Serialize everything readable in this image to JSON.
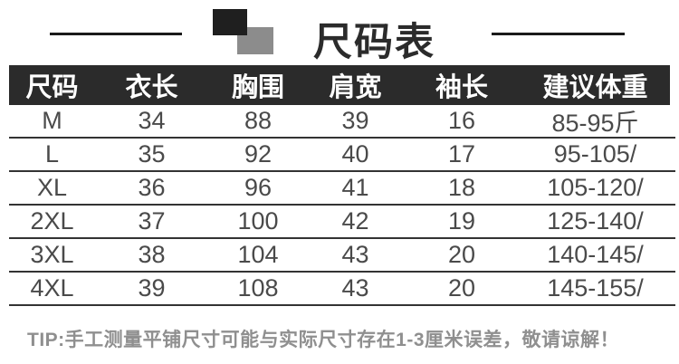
{
  "header": {
    "title": "尺码表"
  },
  "table": {
    "columns": [
      "尺码",
      "衣长",
      "胸围",
      "肩宽",
      "袖长",
      "建议体重"
    ],
    "rows": [
      [
        "M",
        "34",
        "88",
        "39",
        "16",
        "85-95斤"
      ],
      [
        "L",
        "35",
        "92",
        "40",
        "17",
        "95-105/"
      ],
      [
        "XL",
        "36",
        "96",
        "41",
        "18",
        "105-120/"
      ],
      [
        "2XL",
        "37",
        "100",
        "42",
        "19",
        "125-140/"
      ],
      [
        "3XL",
        "38",
        "104",
        "43",
        "20",
        "140-145/"
      ],
      [
        "4XL",
        "39",
        "108",
        "43",
        "20",
        "145-155/"
      ]
    ]
  },
  "footer": {
    "tip": "TIP:手工测量平铺尺寸可能与实际尺寸存在1-3厘米误差，敬请谅解！"
  },
  "colors": {
    "header_bg": "#2b2b2b",
    "header_text": "#ffffff",
    "body_text": "#4a4a4a",
    "row_line": "#333333",
    "tip_text": "#8f8f8f",
    "decor_black_square": "#1f1f1f",
    "decor_gray_square": "#8c8c8c"
  }
}
